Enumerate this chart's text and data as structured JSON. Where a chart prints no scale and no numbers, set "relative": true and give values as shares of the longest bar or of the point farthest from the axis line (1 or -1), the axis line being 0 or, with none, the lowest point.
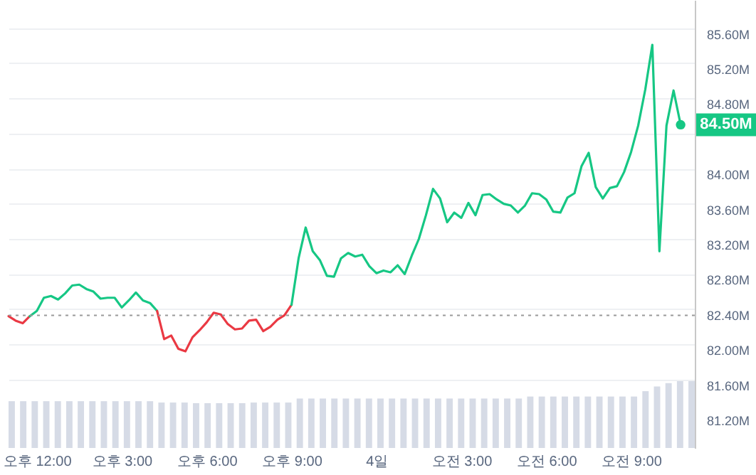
{
  "chart_data": [
    {
      "type": "line",
      "ylim": [
        80.82,
        85.92
      ],
      "categories": [
        null,
        null,
        null,
        null,
        "오후 12:00",
        null,
        null,
        null,
        null,
        null,
        null,
        null,
        null,
        null,
        null,
        null,
        "오후 3:00",
        null,
        null,
        null,
        null,
        null,
        null,
        null,
        null,
        null,
        null,
        null,
        "오후 6:00",
        null,
        null,
        null,
        null,
        null,
        null,
        null,
        null,
        null,
        null,
        null,
        "오후 9:00",
        null,
        null,
        null,
        null,
        null,
        null,
        null,
        null,
        null,
        null,
        null,
        "4일",
        null,
        null,
        null,
        null,
        null,
        null,
        null,
        null,
        null,
        null,
        null,
        "오전 3:00",
        null,
        null,
        null,
        null,
        null,
        null,
        null,
        null,
        null,
        null,
        null,
        "오전 6:00",
        null,
        null,
        null,
        null,
        null,
        null,
        null,
        null,
        null,
        null,
        null,
        "오전 9:00",
        null,
        null,
        null,
        null,
        null,
        null,
        null,
        null,
        null
      ],
      "yticks": [
        {
          "value": 81.2,
          "label": "81.20M"
        },
        {
          "value": 81.6,
          "label": "81.60M"
        },
        {
          "value": 82,
          "label": "82.00M"
        },
        {
          "value": 82.4,
          "label": "82.40M"
        },
        {
          "value": 82.8,
          "label": "82.80M"
        },
        {
          "value": 83.2,
          "label": "83.20M"
        },
        {
          "value": 83.6,
          "label": "83.60M"
        },
        {
          "value": 84,
          "label": "84.00M"
        },
        {
          "value": 84.4,
          "label": null
        },
        {
          "value": 84.8,
          "label": "84.80M"
        },
        {
          "value": 85.2,
          "label": "85.20M"
        },
        {
          "value": 85.6,
          "label": "85.60M"
        }
      ],
      "grid": "y",
      "marker": "none",
      "line_style": "solid",
      "ref_lines": [
        {
          "axis": "y",
          "value": 82.33,
          "line_style": "dotted",
          "color": "#999999"
        }
      ],
      "annotations": [
        {
          "text": "84.50M",
          "y": 84.5
        }
      ],
      "series": [
        {
          "color": "#ea3944",
          "values": [
            82.32,
            82.27,
            82.24,
            82.32,
            null,
            null,
            null,
            null,
            null,
            null,
            null,
            null,
            null,
            null,
            null,
            null,
            null,
            null,
            null,
            null,
            null,
            null,
            null,
            null,
            null,
            null,
            null,
            null,
            null,
            null,
            null,
            null,
            null,
            null,
            null,
            null,
            null,
            null,
            null,
            null,
            null,
            null,
            null,
            null,
            null,
            null,
            null,
            null,
            null,
            null,
            null,
            null,
            null,
            null,
            null,
            null,
            null,
            null,
            null,
            null,
            null,
            null,
            null,
            null,
            null,
            null,
            null,
            null,
            null,
            null,
            null,
            null,
            null,
            null,
            null,
            null,
            null,
            null,
            null,
            null,
            null,
            null,
            null,
            null,
            null,
            null,
            null,
            null,
            null,
            null,
            null,
            null,
            null,
            null,
            null,
            null,
            null,
            null
          ]
        },
        {
          "color": "#16c785",
          "values": [
            null,
            null,
            null,
            82.32,
            82.38,
            82.53,
            82.55,
            82.51,
            82.58,
            82.67,
            82.68,
            82.63,
            82.6,
            82.52,
            82.53,
            82.53,
            82.42,
            82.5,
            82.59,
            82.5,
            82.47,
            82.38,
            null,
            null,
            null,
            null,
            null,
            null,
            null,
            null,
            null,
            null,
            null,
            null,
            null,
            null,
            null,
            null,
            null,
            null,
            null,
            null,
            null,
            null,
            null,
            null,
            null,
            null,
            null,
            null,
            null,
            null,
            null,
            null,
            null,
            null,
            null,
            null,
            null,
            null,
            null,
            null,
            null,
            null,
            null,
            null,
            null,
            null,
            null,
            null,
            null,
            null,
            null,
            null,
            null,
            null,
            null,
            null,
            null,
            null,
            null,
            null,
            null,
            null,
            null,
            null,
            null,
            null,
            null,
            null,
            null,
            null,
            null,
            null,
            null,
            null,
            null,
            null
          ]
        },
        {
          "color": "#ea3943",
          "values": [
            null,
            null,
            null,
            null,
            null,
            null,
            null,
            null,
            null,
            null,
            null,
            null,
            null,
            null,
            null,
            null,
            null,
            null,
            null,
            null,
            null,
            82.38,
            82.06,
            82.1,
            81.95,
            81.92,
            82.08,
            82.16,
            82.25,
            82.36,
            82.34,
            82.23,
            82.17,
            82.18,
            82.27,
            82.28,
            82.15,
            82.2,
            82.28,
            82.33,
            82.45,
            null,
            null,
            null,
            null,
            null,
            null,
            null,
            null,
            null,
            null,
            null,
            null,
            null,
            null,
            null,
            null,
            null,
            null,
            null,
            null,
            null,
            null,
            null,
            null,
            null,
            null,
            null,
            null,
            null,
            null,
            null,
            null,
            null,
            null,
            null,
            null,
            null,
            null,
            null,
            null,
            null,
            null,
            null,
            null,
            null,
            null,
            null,
            null,
            null,
            null,
            null,
            null,
            null,
            null,
            null,
            null,
            null
          ]
        },
        {
          "color": "#16c784",
          "values": [
            null,
            null,
            null,
            null,
            null,
            null,
            null,
            null,
            null,
            null,
            null,
            null,
            null,
            null,
            null,
            null,
            null,
            null,
            null,
            null,
            null,
            null,
            null,
            null,
            null,
            null,
            null,
            null,
            null,
            null,
            null,
            null,
            null,
            null,
            null,
            null,
            null,
            null,
            null,
            null,
            82.45,
            82.98,
            83.33,
            83.06,
            82.96,
            82.78,
            82.77,
            82.98,
            83.04,
            83,
            83.02,
            82.89,
            82.81,
            82.84,
            82.82,
            82.9,
            82.8,
            83.01,
            83.2,
            83.47,
            83.77,
            83.66,
            83.39,
            83.5,
            83.44,
            83.61,
            83.47,
            83.7,
            83.71,
            83.65,
            83.6,
            83.58,
            83.5,
            83.58,
            83.72,
            83.71,
            83.65,
            83.51,
            83.5,
            83.67,
            83.72,
            84.03,
            84.18,
            83.79,
            83.66,
            83.78,
            83.8,
            83.96,
            84.19,
            84.49,
            84.9,
            85.41,
            83.06,
            84.49,
            84.89,
            84.5,
            null,
            null
          ]
        }
      ]
    },
    {
      "type": "bar",
      "relative": true,
      "color": "#d6dbe6",
      "categories": [
        null,
        null,
        null,
        null,
        null,
        null,
        null,
        null,
        null,
        null,
        null,
        null,
        null,
        null,
        null,
        null,
        null,
        null,
        null,
        null,
        null,
        null,
        null,
        null,
        null,
        null,
        null,
        null,
        null,
        null,
        null,
        null,
        null,
        null,
        null,
        null,
        null,
        null,
        null,
        null,
        null,
        null,
        null,
        null,
        null,
        null,
        null,
        null,
        null,
        null,
        null,
        null,
        null,
        null,
        null,
        null,
        null,
        null,
        null,
        null
      ],
      "values": [
        0.7,
        0.7,
        0.7,
        0.7,
        0.7,
        0.7,
        0.7,
        0.7,
        0.7,
        0.7,
        0.7,
        0.7,
        0.7,
        0.68,
        0.68,
        0.68,
        0.67,
        0.67,
        0.67,
        0.67,
        0.67,
        0.68,
        0.68,
        0.68,
        0.68,
        0.74,
        0.74,
        0.74,
        0.74,
        0.74,
        0.74,
        0.74,
        0.74,
        0.74,
        0.74,
        0.74,
        0.74,
        0.74,
        0.74,
        0.74,
        0.74,
        0.74,
        0.74,
        0.74,
        0.74,
        0.77,
        0.77,
        0.77,
        0.77,
        0.77,
        0.77,
        0.77,
        0.77,
        0.77,
        0.77,
        0.85,
        0.92,
        0.97,
        1,
        1
      ]
    }
  ]
}
